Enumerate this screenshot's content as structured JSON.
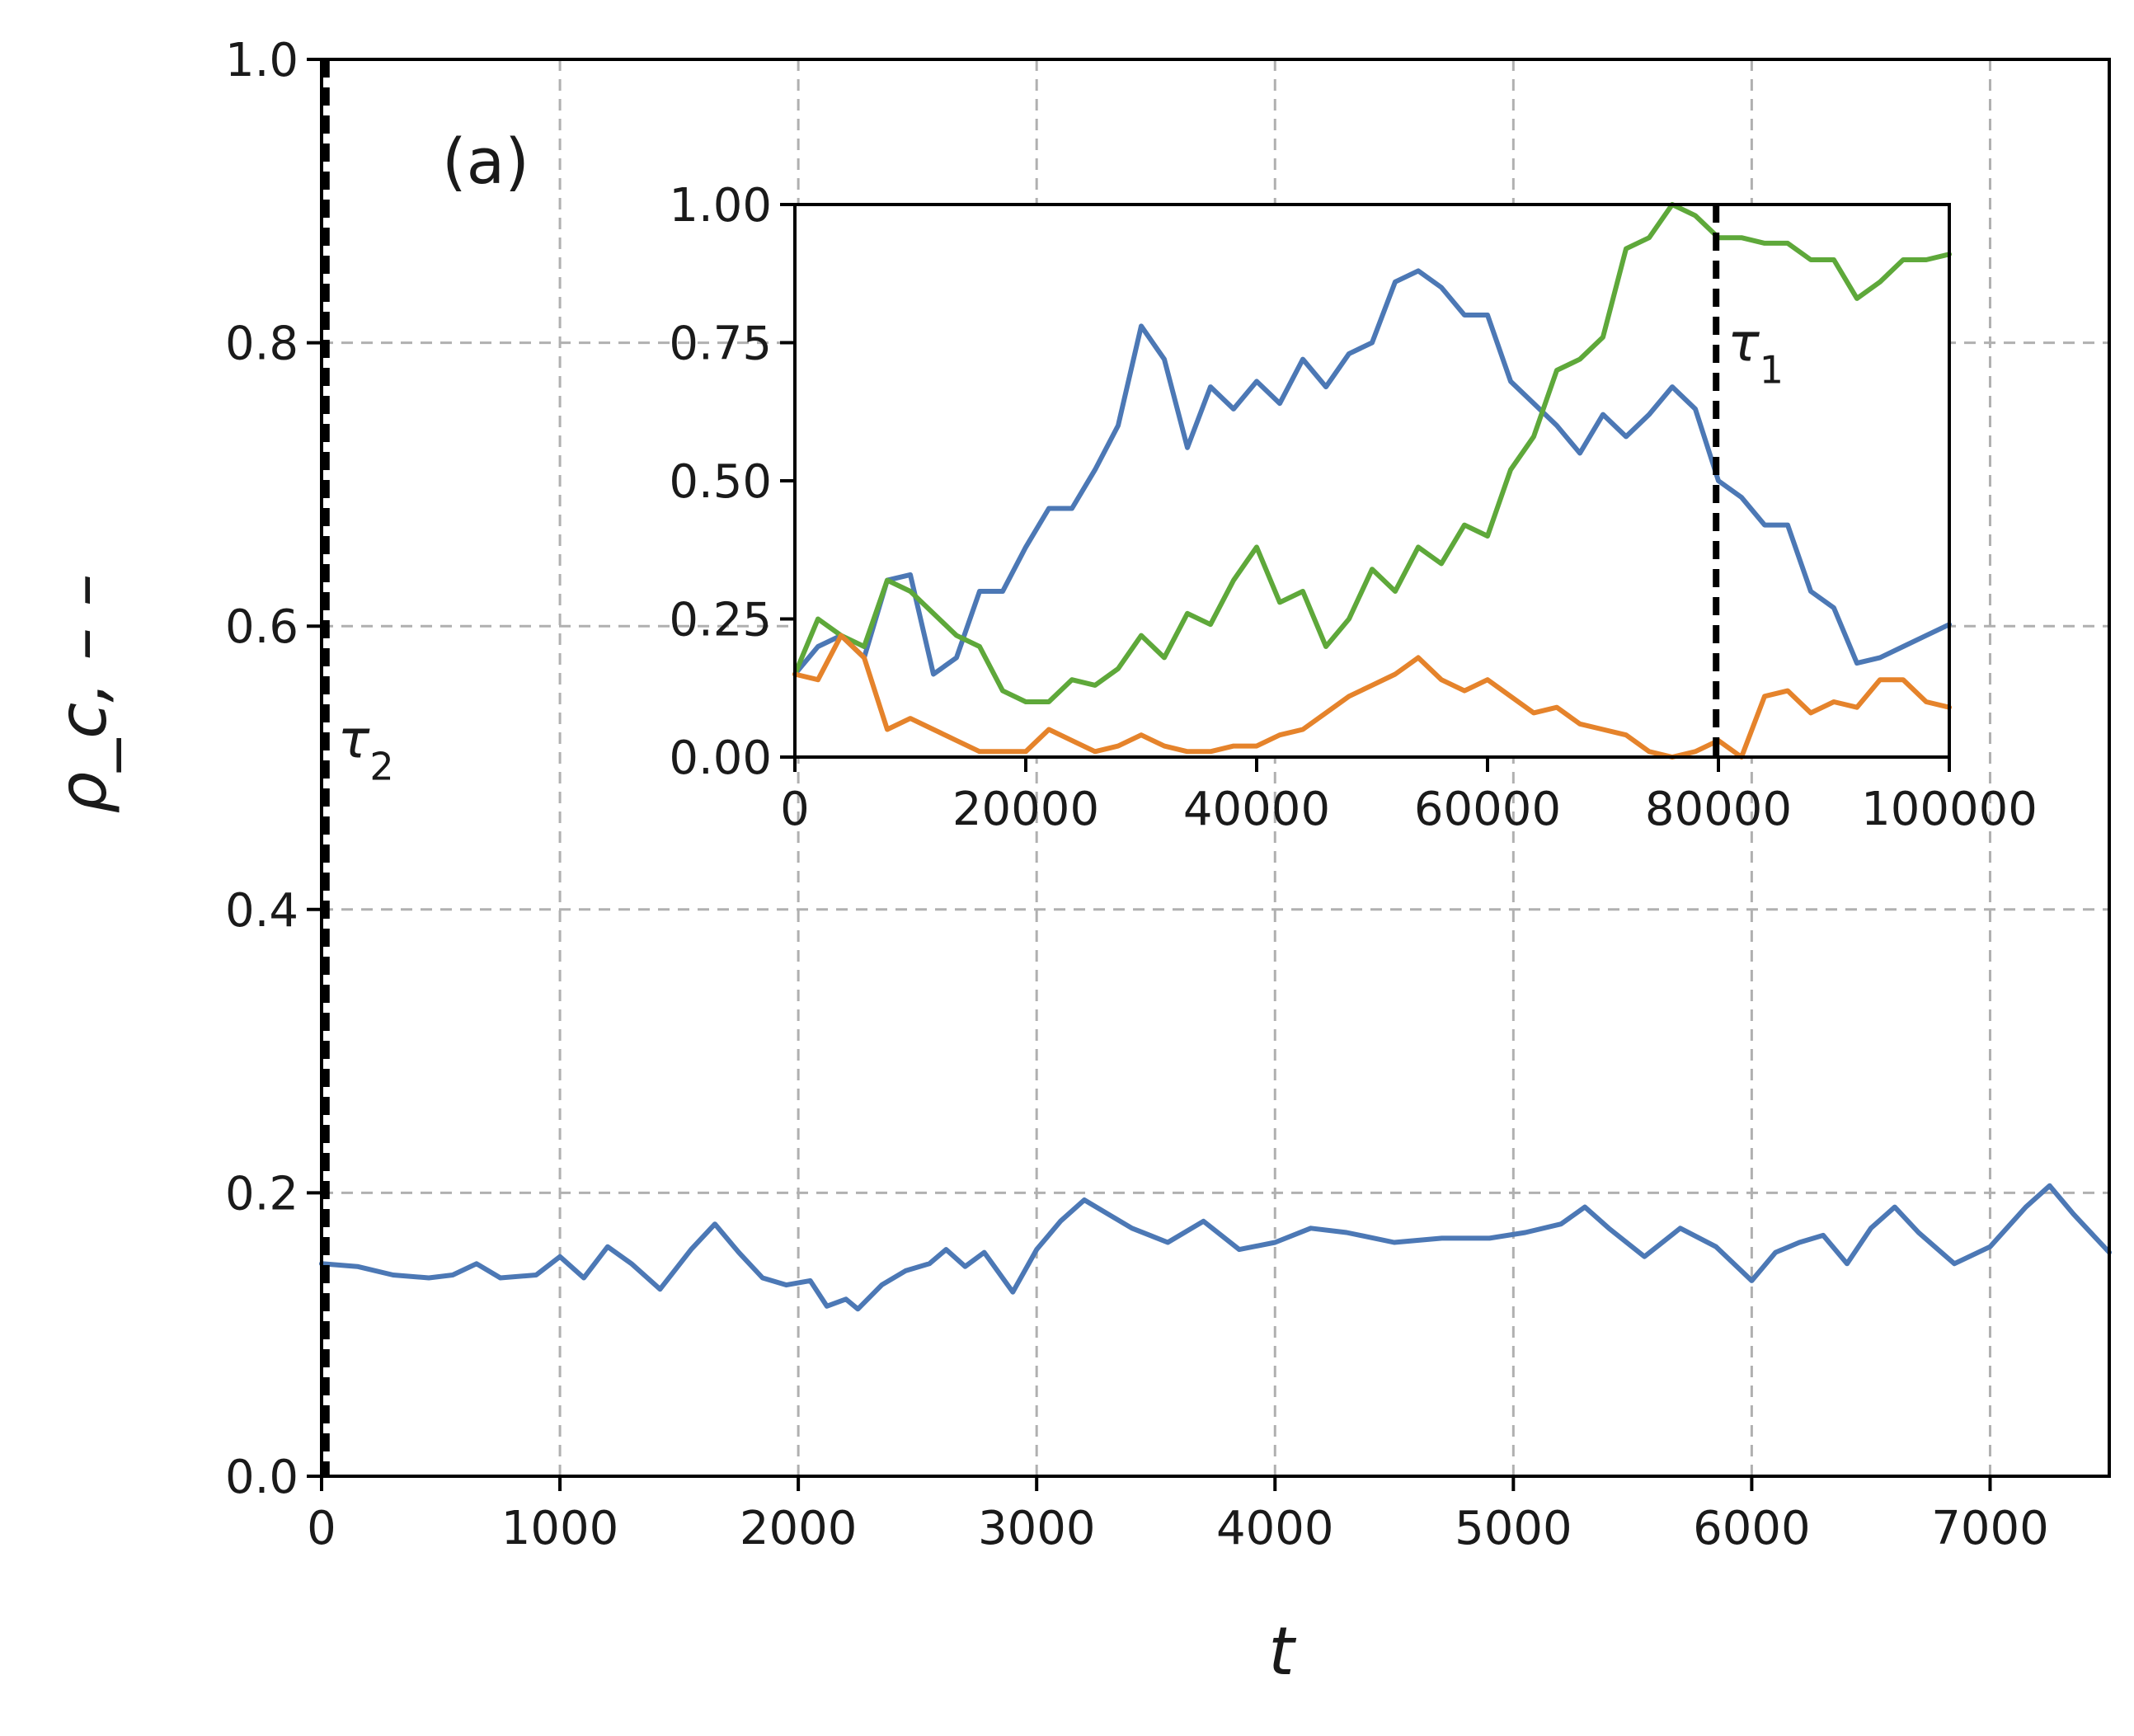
{
  "chart_data": [
    {
      "id": "main",
      "type": "line",
      "panel_label": "(a)",
      "xlabel": "t",
      "ylabel": "ρ_c, – –",
      "xlim": [
        0,
        7500
      ],
      "ylim": [
        0.0,
        1.0
      ],
      "xticks": [
        0,
        1000,
        2000,
        3000,
        4000,
        5000,
        6000,
        7000
      ],
      "xtick_labels": [
        "0",
        "1000",
        "2000",
        "3000",
        "4000",
        "5000",
        "6000",
        "7000"
      ],
      "yticks": [
        0.0,
        0.2,
        0.4,
        0.6,
        0.8,
        1.0
      ],
      "ytick_labels": [
        "0.0",
        "0.2",
        "0.4",
        "0.6",
        "0.8",
        "1.0"
      ],
      "grid": true,
      "vline": {
        "x": 20,
        "label": "τ",
        "label_sub": "2",
        "label_y": 0.52
      },
      "series": [
        {
          "name": "blue",
          "color": "#4c78b5",
          "x": [
            0,
            150,
            300,
            450,
            550,
            650,
            750,
            900,
            1000,
            1100,
            1200,
            1300,
            1420,
            1550,
            1650,
            1750,
            1850,
            1950,
            2050,
            2120,
            2200,
            2250,
            2350,
            2450,
            2550,
            2620,
            2700,
            2780,
            2900,
            3000,
            3100,
            3200,
            3300,
            3400,
            3550,
            3700,
            3850,
            4000,
            4150,
            4300,
            4500,
            4700,
            4900,
            5050,
            5200,
            5300,
            5400,
            5550,
            5700,
            5850,
            6000,
            6100,
            6200,
            6300,
            6400,
            6500,
            6600,
            6700,
            6850,
            7000,
            7150,
            7250,
            7350,
            7500
          ],
          "y": [
            0.15,
            0.148,
            0.142,
            0.14,
            0.142,
            0.15,
            0.14,
            0.142,
            0.155,
            0.14,
            0.162,
            0.15,
            0.132,
            0.16,
            0.178,
            0.158,
            0.14,
            0.135,
            0.138,
            0.12,
            0.125,
            0.118,
            0.135,
            0.145,
            0.15,
            0.16,
            0.148,
            0.158,
            0.13,
            0.16,
            0.18,
            0.195,
            0.185,
            0.175,
            0.165,
            0.18,
            0.16,
            0.165,
            0.175,
            0.172,
            0.165,
            0.168,
            0.168,
            0.172,
            0.178,
            0.19,
            0.175,
            0.155,
            0.175,
            0.162,
            0.138,
            0.158,
            0.165,
            0.17,
            0.15,
            0.175,
            0.19,
            0.172,
            0.15,
            0.162,
            0.19,
            0.205,
            0.185,
            0.158
          ]
        }
      ]
    },
    {
      "id": "inset",
      "type": "line",
      "xlim": [
        0,
        100000
      ],
      "ylim": [
        0.0,
        1.0
      ],
      "xticks": [
        0,
        20000,
        40000,
        60000,
        80000,
        100000
      ],
      "xtick_labels": [
        "0",
        "20000",
        "40000",
        "60000",
        "80000",
        "100000"
      ],
      "yticks": [
        0.0,
        0.25,
        0.5,
        0.75,
        1.0
      ],
      "ytick_labels": [
        "0.00",
        "0.25",
        "0.50",
        "0.75",
        "1.00"
      ],
      "grid": false,
      "vline": {
        "x": 79800,
        "label": "τ",
        "label_sub": "1",
        "label_y": 0.75
      },
      "series": [
        {
          "name": "blue",
          "color": "#4c78b5",
          "x": [
            0,
            2000,
            4000,
            6000,
            8000,
            10000,
            12000,
            14000,
            16000,
            18000,
            20000,
            22000,
            24000,
            26000,
            28000,
            30000,
            32000,
            34000,
            36000,
            38000,
            40000,
            42000,
            44000,
            46000,
            48000,
            50000,
            52000,
            54000,
            56000,
            58000,
            60000,
            62000,
            64000,
            66000,
            68000,
            70000,
            72000,
            74000,
            76000,
            78000,
            80000,
            82000,
            84000,
            86000,
            88000,
            90000,
            92000,
            94000,
            96000,
            98000,
            100000
          ],
          "y": [
            0.15,
            0.2,
            0.22,
            0.18,
            0.32,
            0.33,
            0.15,
            0.18,
            0.3,
            0.3,
            0.38,
            0.45,
            0.45,
            0.52,
            0.6,
            0.78,
            0.72,
            0.56,
            0.67,
            0.63,
            0.68,
            0.64,
            0.72,
            0.67,
            0.73,
            0.75,
            0.86,
            0.88,
            0.85,
            0.8,
            0.8,
            0.68,
            0.64,
            0.6,
            0.55,
            0.62,
            0.58,
            0.62,
            0.67,
            0.63,
            0.5,
            0.47,
            0.42,
            0.42,
            0.3,
            0.27,
            0.17,
            0.18,
            0.2,
            0.22,
            0.24
          ]
        },
        {
          "name": "green",
          "color": "#5ea83a",
          "x": [
            0,
            2000,
            4000,
            6000,
            8000,
            10000,
            12000,
            14000,
            16000,
            18000,
            20000,
            22000,
            24000,
            26000,
            28000,
            30000,
            32000,
            34000,
            36000,
            38000,
            40000,
            42000,
            44000,
            46000,
            48000,
            50000,
            52000,
            54000,
            56000,
            58000,
            60000,
            62000,
            64000,
            66000,
            68000,
            70000,
            72000,
            74000,
            76000,
            78000,
            80000,
            82000,
            84000,
            86000,
            88000,
            90000,
            92000,
            94000,
            96000,
            98000,
            100000
          ],
          "y": [
            0.15,
            0.25,
            0.22,
            0.2,
            0.32,
            0.3,
            0.26,
            0.22,
            0.2,
            0.12,
            0.1,
            0.1,
            0.14,
            0.13,
            0.16,
            0.22,
            0.18,
            0.26,
            0.24,
            0.32,
            0.38,
            0.28,
            0.3,
            0.2,
            0.25,
            0.34,
            0.3,
            0.38,
            0.35,
            0.42,
            0.4,
            0.52,
            0.58,
            0.7,
            0.72,
            0.76,
            0.92,
            0.94,
            1.0,
            0.98,
            0.94,
            0.94,
            0.93,
            0.93,
            0.9,
            0.9,
            0.83,
            0.86,
            0.9,
            0.9,
            0.91
          ]
        },
        {
          "name": "orange",
          "color": "#e5832b",
          "x": [
            0,
            2000,
            4000,
            6000,
            8000,
            10000,
            12000,
            14000,
            16000,
            18000,
            20000,
            22000,
            24000,
            26000,
            28000,
            30000,
            32000,
            34000,
            36000,
            38000,
            40000,
            42000,
            44000,
            46000,
            48000,
            50000,
            52000,
            54000,
            56000,
            58000,
            60000,
            62000,
            64000,
            66000,
            68000,
            70000,
            72000,
            74000,
            76000,
            78000,
            80000,
            82000,
            84000,
            86000,
            88000,
            90000,
            92000,
            94000,
            96000,
            98000,
            100000
          ],
          "y": [
            0.15,
            0.14,
            0.22,
            0.18,
            0.05,
            0.07,
            0.05,
            0.03,
            0.01,
            0.01,
            0.01,
            0.05,
            0.03,
            0.01,
            0.02,
            0.04,
            0.02,
            0.01,
            0.01,
            0.02,
            0.02,
            0.04,
            0.05,
            0.08,
            0.11,
            0.13,
            0.15,
            0.18,
            0.14,
            0.12,
            0.14,
            0.11,
            0.08,
            0.09,
            0.06,
            0.05,
            0.04,
            0.01,
            0.0,
            0.01,
            0.03,
            0.0,
            0.11,
            0.12,
            0.08,
            0.1,
            0.09,
            0.14,
            0.14,
            0.1,
            0.09
          ]
        }
      ]
    }
  ]
}
